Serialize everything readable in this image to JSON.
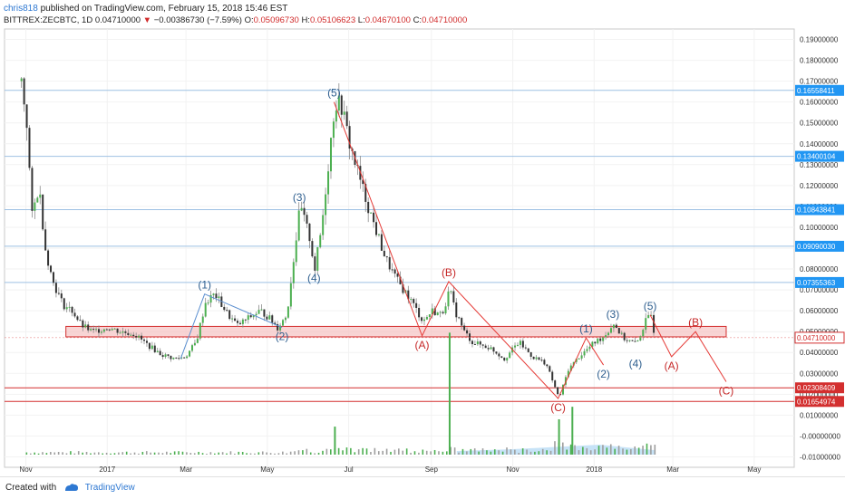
{
  "header": {
    "username": "chris818",
    "published_text": " published on TradingView.com, February 15, 2018 15:46 EST",
    "symbol": "BITTREX:ZECBTC, 1D",
    "last": "0.04710000",
    "change": "−0.00386730 (−7.59%)",
    "o_label": "O:",
    "o": "0.05096730",
    "h_label": "H:",
    "h": "0.05106623",
    "l_label": "L:",
    "l": "0.04670100",
    "c_label": "C:",
    "c": "0.04710000"
  },
  "footer": {
    "created_with": "Created with",
    "brand": "TradingView"
  },
  "colors": {
    "up": "#4caf50",
    "down": "#333333",
    "wave_blue": "#2f5f8f",
    "wave_red": "#c62828",
    "hline_blue": "#9ec1e3",
    "hline_red": "#d32f2f",
    "zone_fill": "#f5c6c6",
    "price_badge": "#2196f3"
  },
  "chart_data": {
    "type": "candlestick",
    "symbol": "BITTREX:ZECBTC",
    "interval": "1D",
    "x_tick_labels": [
      "Nov",
      "2017",
      "Mar",
      "May",
      "Jul",
      "Sep",
      "Nov",
      "2018",
      "Mar",
      "May"
    ],
    "x_tick_dates": [
      "2016-11-01",
      "2017-01-01",
      "2017-03-01",
      "2017-05-01",
      "2017-07-01",
      "2017-09-01",
      "2017-11-01",
      "2018-01-01",
      "2018-03-01",
      "2018-05-01"
    ],
    "y_tick_labels": [
      "0.19000000",
      "0.18000000",
      "0.17000000",
      "0.16000000",
      "0.15000000",
      "0.14000000",
      "0.13000000",
      "0.12000000",
      "0.11000000",
      "0.10000000",
      "0.09000000",
      "0.08000000",
      "0.07000000",
      "0.06000000",
      "0.05000000",
      "0.04000000",
      "0.03000000",
      "0.02000000",
      "0.01000000",
      "-0.00000000",
      "-0.01000000"
    ],
    "ylim": [
      -0.015,
      0.195
    ],
    "price_path": [
      [
        "2016-10-28",
        0.17
      ],
      [
        "2016-11-01",
        0.15
      ],
      [
        "2016-11-05",
        0.105
      ],
      [
        "2016-11-10",
        0.12
      ],
      [
        "2016-11-15",
        0.09
      ],
      [
        "2016-11-20",
        0.075
      ],
      [
        "2016-11-28",
        0.063
      ],
      [
        "2016-12-05",
        0.06
      ],
      [
        "2016-12-12",
        0.053
      ],
      [
        "2016-12-20",
        0.05
      ],
      [
        "2017-01-01",
        0.052
      ],
      [
        "2017-01-10",
        0.05
      ],
      [
        "2017-01-20",
        0.049
      ],
      [
        "2017-02-01",
        0.043
      ],
      [
        "2017-02-10",
        0.039
      ],
      [
        "2017-02-20",
        0.037
      ],
      [
        "2017-02-28",
        0.038
      ],
      [
        "2017-03-08",
        0.045
      ],
      [
        "2017-03-15",
        0.064
      ],
      [
        "2017-03-22",
        0.068
      ],
      [
        "2017-04-01",
        0.058
      ],
      [
        "2017-04-08",
        0.053
      ],
      [
        "2017-04-15",
        0.056
      ],
      [
        "2017-04-25",
        0.06
      ],
      [
        "2017-05-01",
        0.057
      ],
      [
        "2017-05-08",
        0.052
      ],
      [
        "2017-05-15",
        0.058
      ],
      [
        "2017-05-20",
        0.085
      ],
      [
        "2017-05-25",
        0.11
      ],
      [
        "2017-06-01",
        0.095
      ],
      [
        "2017-06-05",
        0.08
      ],
      [
        "2017-06-10",
        0.1
      ],
      [
        "2017-06-15",
        0.13
      ],
      [
        "2017-06-20",
        0.16
      ],
      [
        "2017-06-25",
        0.158
      ],
      [
        "2017-07-01",
        0.14
      ],
      [
        "2017-07-10",
        0.12
      ],
      [
        "2017-07-20",
        0.1
      ],
      [
        "2017-07-28",
        0.085
      ],
      [
        "2017-08-05",
        0.075
      ],
      [
        "2017-08-15",
        0.066
      ],
      [
        "2017-08-25",
        0.055
      ],
      [
        "2017-09-01",
        0.06
      ],
      [
        "2017-09-08",
        0.058
      ],
      [
        "2017-09-14",
        0.07
      ],
      [
        "2017-09-18",
        0.06
      ],
      [
        "2017-09-25",
        0.05
      ],
      [
        "2017-10-01",
        0.045
      ],
      [
        "2017-10-15",
        0.042
      ],
      [
        "2017-10-25",
        0.037
      ],
      [
        "2017-11-05",
        0.045
      ],
      [
        "2017-11-15",
        0.038
      ],
      [
        "2017-11-25",
        0.035
      ],
      [
        "2017-12-01",
        0.025
      ],
      [
        "2017-12-05",
        0.018
      ],
      [
        "2017-12-12",
        0.032
      ],
      [
        "2017-12-20",
        0.038
      ],
      [
        "2018-01-01",
        0.045
      ],
      [
        "2018-01-08",
        0.048
      ],
      [
        "2018-01-15",
        0.054
      ],
      [
        "2018-01-22",
        0.047
      ],
      [
        "2018-02-01",
        0.044
      ],
      [
        "2018-02-08",
        0.055
      ],
      [
        "2018-02-12",
        0.058
      ],
      [
        "2018-02-15",
        0.0471
      ]
    ],
    "horizontal_levels": [
      {
        "price": 0.16558411,
        "label": "0.16558411",
        "color": "blue"
      },
      {
        "price": 0.13400104,
        "label": "0.13400104",
        "color": "blue"
      },
      {
        "price": 0.10843841,
        "label": "0.10843841",
        "color": "blue"
      },
      {
        "price": 0.0909003,
        "label": "0.09090030",
        "color": "blue"
      },
      {
        "price": 0.07355363,
        "label": "0.07355363",
        "color": "blue"
      },
      {
        "price": 0.02308409,
        "label": "0.02308409",
        "color": "red"
      },
      {
        "price": 0.01654974,
        "label": "0.01654974",
        "color": "red"
      }
    ],
    "current_price": {
      "price": 0.0471,
      "label": "0.04710000"
    },
    "zone": {
      "from_date": "2016-12-01",
      "to_date": "2018-04-10",
      "top": 0.0525,
      "bottom": 0.0475
    },
    "wave_points": [
      {
        "label": "(1)",
        "date": "2017-03-15",
        "price": 0.068,
        "color": "blue",
        "pos": "above"
      },
      {
        "label": "(2)",
        "date": "2017-05-12",
        "price": 0.052,
        "color": "blue",
        "pos": "below"
      },
      {
        "label": "(3)",
        "date": "2017-05-25",
        "price": 0.11,
        "color": "blue",
        "pos": "above"
      },
      {
        "label": "(4)",
        "date": "2017-06-05",
        "price": 0.08,
        "color": "blue",
        "pos": "below"
      },
      {
        "label": "(5)",
        "date": "2017-06-20",
        "price": 0.16,
        "color": "blue",
        "pos": "above"
      },
      {
        "label": "(A)",
        "date": "2017-08-25",
        "price": 0.048,
        "color": "red",
        "pos": "below"
      },
      {
        "label": "(B)",
        "date": "2017-09-14",
        "price": 0.074,
        "color": "red",
        "pos": "above"
      },
      {
        "label": "(C)",
        "date": "2017-12-05",
        "price": 0.018,
        "color": "red",
        "pos": "below"
      },
      {
        "label": "(1)",
        "date": "2017-12-26",
        "price": 0.047,
        "color": "blue",
        "pos": "above"
      },
      {
        "label": "(2)",
        "date": "2018-01-08",
        "price": 0.034,
        "color": "blue",
        "pos": "below"
      },
      {
        "label": "(3)",
        "date": "2018-01-15",
        "price": 0.054,
        "color": "blue",
        "pos": "above"
      },
      {
        "label": "(4)",
        "date": "2018-02-01",
        "price": 0.039,
        "color": "blue",
        "pos": "below"
      },
      {
        "label": "(5)",
        "date": "2018-02-12",
        "price": 0.058,
        "color": "blue",
        "pos": "above"
      },
      {
        "label": "(A)",
        "date": "2018-02-28",
        "price": 0.038,
        "color": "red",
        "pos": "below"
      },
      {
        "label": "(B)",
        "date": "2018-03-18",
        "price": 0.05,
        "color": "red",
        "pos": "above"
      },
      {
        "label": "(C)",
        "date": "2018-04-10",
        "price": 0.026,
        "color": "red",
        "pos": "below"
      }
    ],
    "wave_lines": {
      "blue": [
        [
          "2017-02-25",
          0.037
        ],
        [
          "2017-03-15",
          0.068
        ],
        [
          "2017-05-12",
          0.052
        ]
      ],
      "red": [
        [
          "2017-06-20",
          0.16
        ],
        [
          "2017-08-25",
          0.048
        ],
        [
          "2017-09-14",
          0.074
        ],
        [
          "2017-12-05",
          0.018
        ],
        [
          "2017-12-26",
          0.047
        ],
        [
          "2018-01-08",
          0.034
        ]
      ],
      "red_projection": [
        [
          "2018-02-12",
          0.058
        ],
        [
          "2018-02-28",
          0.038
        ],
        [
          "2018-03-18",
          0.05
        ],
        [
          "2018-04-10",
          0.026
        ]
      ]
    },
    "volume": "histogram at bottom with green/gray bars and a light blue area; large spike around 2017-09-14"
  }
}
